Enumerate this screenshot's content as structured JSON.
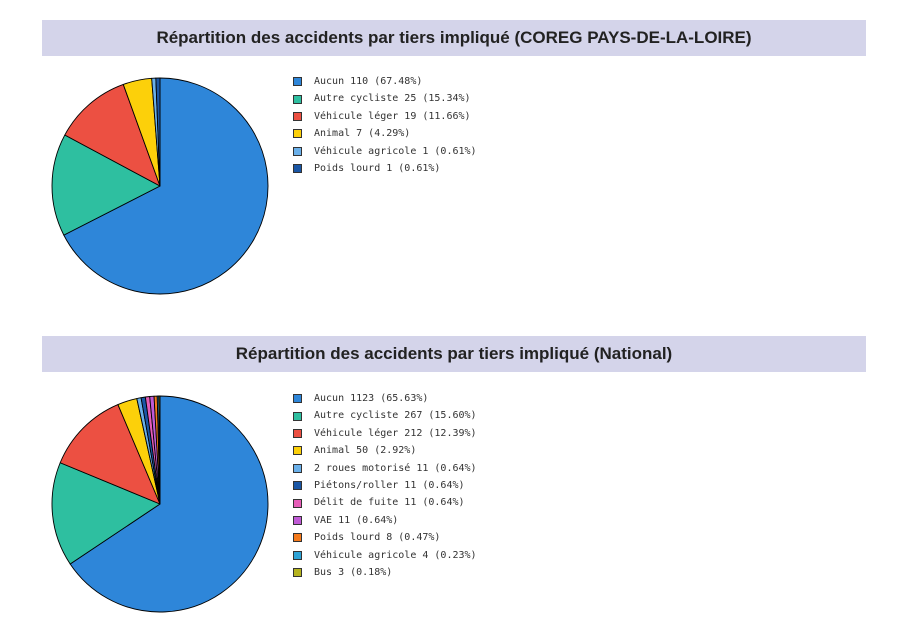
{
  "chart_data": [
    {
      "type": "pie",
      "title": "Répartition des accidents par tiers impliqué (COREG PAYS-DE-LA-LOIRE)",
      "slices": [
        {
          "label": "Aucun 110 (67.48%)",
          "value": 110,
          "percent": 67.48,
          "color": "#2e86d9"
        },
        {
          "label": "Autre cycliste 25 (15.34%)",
          "value": 25,
          "percent": 15.34,
          "color": "#2ebfa0"
        },
        {
          "label": "Véhicule léger 19 (11.66%)",
          "value": 19,
          "percent": 11.66,
          "color": "#ec5042"
        },
        {
          "label": "Animal 7 (4.29%)",
          "value": 7,
          "percent": 4.29,
          "color": "#fcd00a"
        },
        {
          "label": "Véhicule agricole 1 (0.61%)",
          "value": 1,
          "percent": 0.61,
          "color": "#6ab0ea"
        },
        {
          "label": "Poids lourd 1 (0.61%)",
          "value": 1,
          "percent": 0.61,
          "color": "#1a56a5"
        }
      ],
      "legend_position": "right"
    },
    {
      "type": "pie",
      "title": "Répartition des accidents par tiers impliqué (National)",
      "slices": [
        {
          "label": "Aucun 1123 (65.63%)",
          "value": 1123,
          "percent": 65.63,
          "color": "#2e86d9"
        },
        {
          "label": "Autre cycliste 267 (15.60%)",
          "value": 267,
          "percent": 15.6,
          "color": "#2ebfa0"
        },
        {
          "label": "Véhicule léger 212 (12.39%)",
          "value": 212,
          "percent": 12.39,
          "color": "#ec5042"
        },
        {
          "label": "Animal 50 (2.92%)",
          "value": 50,
          "percent": 2.92,
          "color": "#fcd00a"
        },
        {
          "label": "2 roues motorisé 11 (0.64%)",
          "value": 11,
          "percent": 0.64,
          "color": "#6ab0ea"
        },
        {
          "label": "Piétons/roller 11 (0.64%)",
          "value": 11,
          "percent": 0.64,
          "color": "#1a56a5"
        },
        {
          "label": "Délit de fuite 11 (0.64%)",
          "value": 11,
          "percent": 0.64,
          "color": "#e65db8"
        },
        {
          "label": "VAE 11 (0.64%)",
          "value": 11,
          "percent": 0.64,
          "color": "#c05ad6"
        },
        {
          "label": "Poids lourd 8 (0.47%)",
          "value": 8,
          "percent": 0.47,
          "color": "#f57a1c"
        },
        {
          "label": "Véhicule agricole 4 (0.23%)",
          "value": 4,
          "percent": 0.23,
          "color": "#2ea3d6"
        },
        {
          "label": "Bus 3 (0.18%)",
          "value": 3,
          "percent": 0.18,
          "color": "#b5b31e"
        }
      ],
      "legend_position": "right"
    }
  ]
}
